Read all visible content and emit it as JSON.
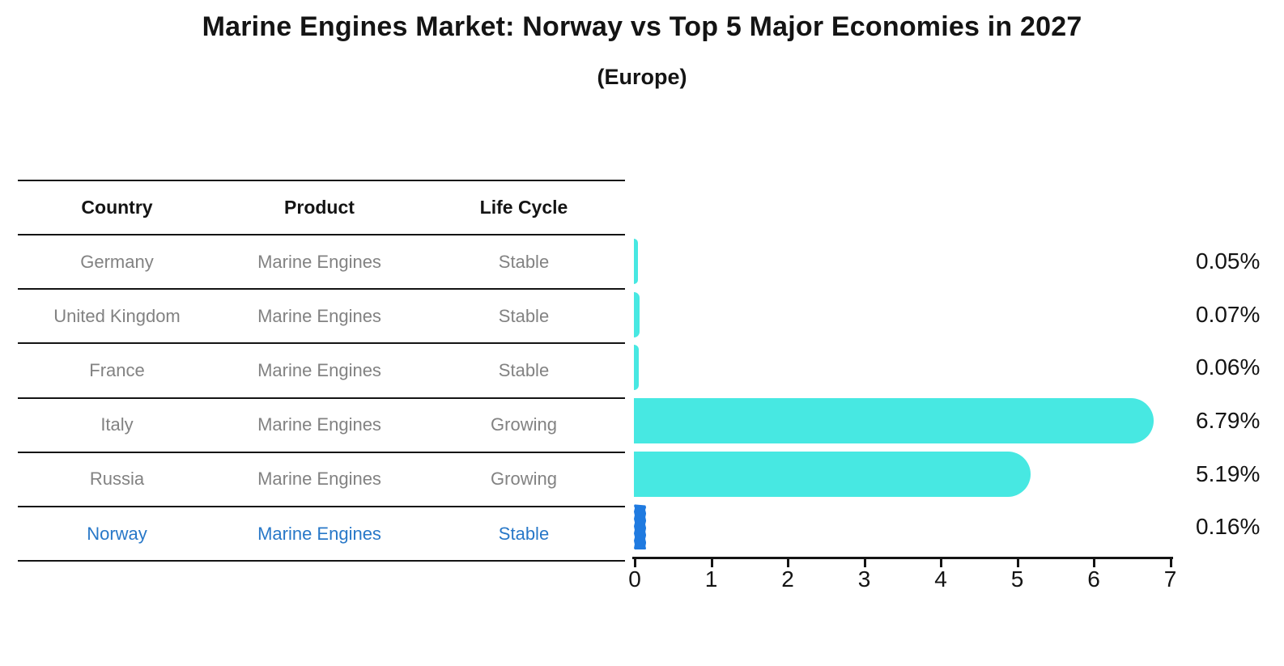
{
  "title": "Marine Engines Market: Norway vs Top 5 Major Economies in 2027",
  "subtitle": "(Europe)",
  "table": {
    "headers": [
      "Country",
      "Product",
      "Life Cycle"
    ],
    "rows": [
      {
        "country": "Germany",
        "product": "Marine Engines",
        "life_cycle": "Stable",
        "highlighted": false
      },
      {
        "country": "United Kingdom",
        "product": "Marine Engines",
        "life_cycle": "Stable",
        "highlighted": false
      },
      {
        "country": "France",
        "product": "Marine Engines",
        "life_cycle": "Stable",
        "highlighted": false
      },
      {
        "country": "Italy",
        "product": "Marine Engines",
        "life_cycle": "Growing",
        "highlighted": false
      },
      {
        "country": "Russia",
        "product": "Marine Engines",
        "life_cycle": "Growing",
        "highlighted": false
      },
      {
        "country": "Norway",
        "product": "Marine Engines",
        "life_cycle": "Stable",
        "highlighted": true
      }
    ]
  },
  "chart_data": {
    "type": "bar",
    "orientation": "horizontal",
    "title": "Marine Engines Market: Norway vs Top 5 Major Economies in 2027",
    "subtitle": "(Europe)",
    "categories": [
      "Germany",
      "United Kingdom",
      "France",
      "Italy",
      "Russia",
      "Norway"
    ],
    "values": [
      0.05,
      0.07,
      0.06,
      6.79,
      5.19,
      0.16
    ],
    "value_labels": [
      "0.05%",
      "0.07%",
      "0.06%",
      "6.79%",
      "5.19%",
      "0.16%"
    ],
    "xlim": [
      0,
      7
    ],
    "x_ticks": [
      "0",
      "1",
      "2",
      "3",
      "4",
      "5",
      "6",
      "7"
    ],
    "grid": false,
    "legend": false,
    "bar_color": "#47e8e2",
    "highlight_color": "#1f7ae0",
    "highlight_index": 5
  },
  "colors": {
    "row_text": "#828282",
    "highlight_text": "#2878c8",
    "line": "#141414",
    "background": "#ffffff"
  }
}
